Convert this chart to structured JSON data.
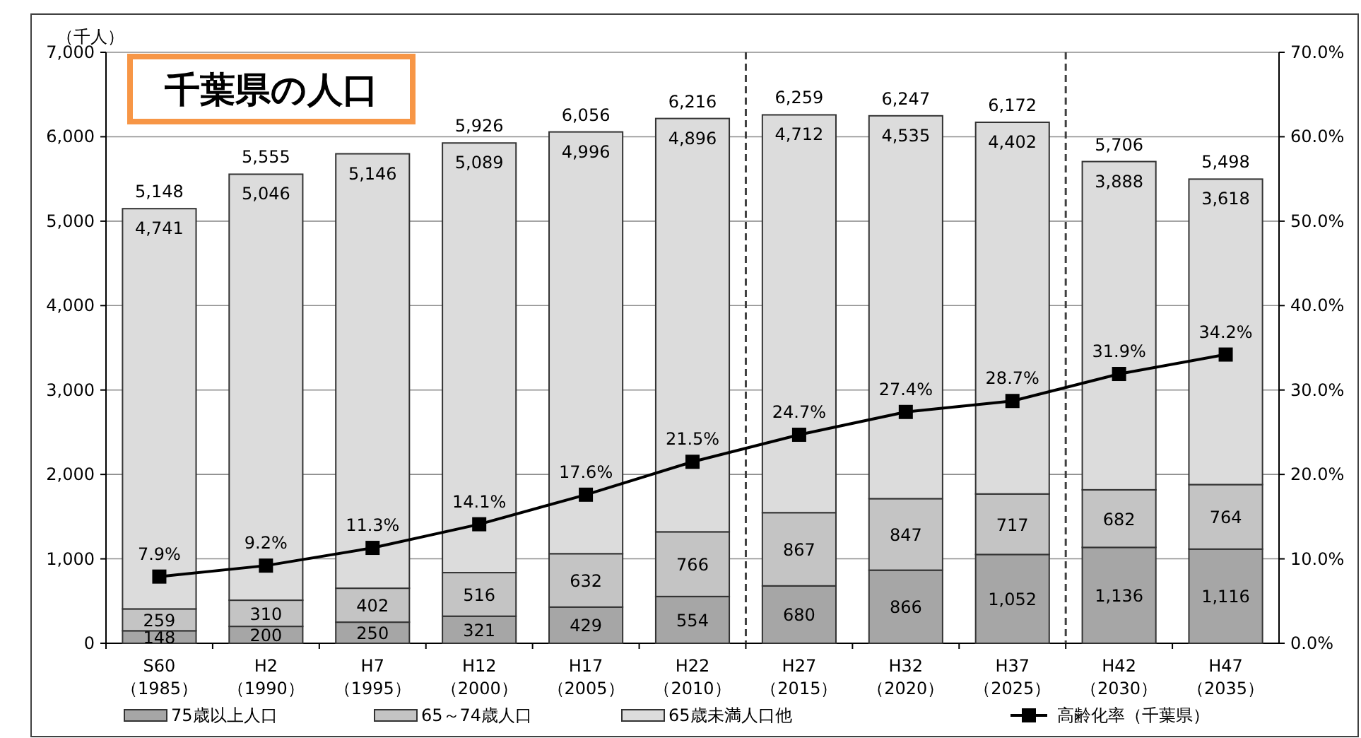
{
  "chart_data": {
    "type": "bar",
    "title": "千葉県の人口",
    "ylabel": "（千人）",
    "stacked": true,
    "grid": "y",
    "legend": "bottom",
    "categories": [
      "S60\n（1985）",
      "H2\n（1990）",
      "H7\n（1995）",
      "H12\n（2000）",
      "H17\n（2005）",
      "H22\n（2010）",
      "H27\n（2015）",
      "H32\n（2020）",
      "H37\n（2025）",
      "H42\n（2030）",
      "H47\n（2035）"
    ],
    "series": [
      {
        "name": "75歳以上人口",
        "color": "#a6a6a6",
        "values": [
          148,
          200,
          250,
          321,
          429,
          554,
          680,
          866,
          1052,
          1136,
          1116
        ],
        "value_labels": [
          "148",
          "200",
          "250",
          "321",
          "429",
          "554",
          "680",
          "866",
          "1,052",
          "1,136",
          "1,116"
        ]
      },
      {
        "name": "65～74歳人口",
        "color": "#c4c4c4",
        "values": [
          259,
          310,
          402,
          516,
          632,
          766,
          867,
          847,
          717,
          682,
          764
        ],
        "value_labels": [
          "259",
          "310",
          "402",
          "516",
          "632",
          "766",
          "867",
          "847",
          "717",
          "682",
          "764"
        ]
      },
      {
        "name": "65歳未満人口他",
        "color": "#dcdcdc",
        "values": [
          4741,
          5046,
          5146,
          5089,
          4996,
          4896,
          4712,
          4535,
          4402,
          3888,
          3618
        ],
        "value_labels": [
          "4,741",
          "5,046",
          "5,146",
          "5,089",
          "4,996",
          "4,896",
          "4,712",
          "4,535",
          "4,402",
          "3,888",
          "3,618"
        ]
      },
      {
        "name": "高齢化率（千葉県）",
        "type": "line",
        "axis": "y2",
        "color": "#000000",
        "marker": "square",
        "values": [
          7.9,
          9.2,
          11.3,
          14.1,
          17.6,
          21.5,
          24.7,
          27.4,
          28.7,
          31.9,
          34.2
        ],
        "value_labels": [
          "7.9%",
          "9.2%",
          "11.3%",
          "14.1%",
          "17.6%",
          "21.5%",
          "24.7%",
          "27.4%",
          "28.7%",
          "31.9%",
          "34.2%"
        ]
      }
    ],
    "totals": [
      "5,148",
      "5,555",
      null,
      "5,926",
      "6,056",
      "6,216",
      "6,259",
      "6,247",
      "6,172",
      "5,706",
      "5,498"
    ],
    "ylim": [
      0,
      7000
    ],
    "yticks": [
      {
        "value": 0,
        "label": "0"
      },
      {
        "value": 1000,
        "label": "1,000"
      },
      {
        "value": 2000,
        "label": "2,000"
      },
      {
        "value": 3000,
        "label": "3,000"
      },
      {
        "value": 4000,
        "label": "4,000"
      },
      {
        "value": 5000,
        "label": "5,000"
      },
      {
        "value": 6000,
        "label": "6,000"
      },
      {
        "value": 7000,
        "label": "7,000"
      }
    ],
    "y2lim": [
      0,
      70
    ],
    "y2ticks": [
      {
        "value": 0,
        "label": "0.0%"
      },
      {
        "value": 10,
        "label": "10.0%"
      },
      {
        "value": 20,
        "label": "20.0%"
      },
      {
        "value": 30,
        "label": "30.0%"
      },
      {
        "value": 40,
        "label": "40.0%"
      },
      {
        "value": 50,
        "label": "50.0%"
      },
      {
        "value": 60,
        "label": "60.0%"
      },
      {
        "value": 70,
        "label": "70.0%"
      }
    ]
  }
}
